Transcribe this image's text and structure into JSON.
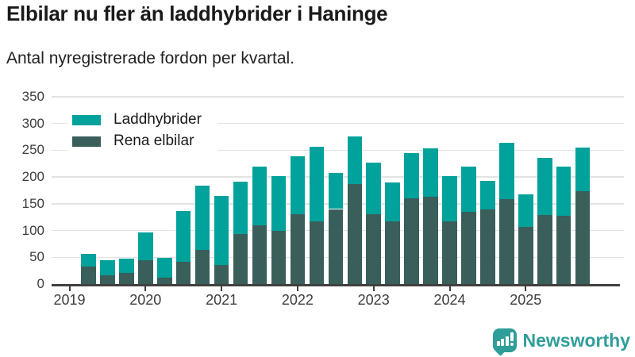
{
  "title": "Elbilar nu fler än laddhybrider i Haninge",
  "subtitle": "Antal nyregistrerade fordon per kvartal.",
  "legend": [
    {
      "label": "Laddhybrider",
      "color": "#00a29b"
    },
    {
      "label": "Rena elbilar",
      "color": "#3a5e59"
    }
  ],
  "branding": {
    "name": "Newsworthy",
    "color": "#2f9e99",
    "icon": "bar-chart-speech-bubble-icon"
  },
  "chart_data": {
    "type": "bar",
    "stacked": true,
    "title": "Elbilar nu fler än laddhybrider i Haninge",
    "subtitle": "Antal nyregistrerade fordon per kvartal.",
    "xlabel": "",
    "ylabel": "Antal nyregistrerade fordon",
    "ylim": [
      0,
      350
    ],
    "yticks": [
      0,
      50,
      100,
      150,
      200,
      250,
      300,
      350
    ],
    "xticks": [
      "2019",
      "2020",
      "2021",
      "2022",
      "2023",
      "2024",
      "2025"
    ],
    "grid": true,
    "legend_position": "top-left",
    "x": [
      "2019 Q2",
      "2019 Q3",
      "2019 Q4",
      "2020 Q1",
      "2020 Q2",
      "2020 Q3",
      "2020 Q4",
      "2021 Q1",
      "2021 Q2",
      "2021 Q3",
      "2021 Q4",
      "2022 Q1",
      "2022 Q2",
      "2022 Q3",
      "2022 Q4",
      "2023 Q1",
      "2023 Q2",
      "2023 Q3",
      "2023 Q4",
      "2024 Q1",
      "2024 Q2",
      "2024 Q3",
      "2024 Q4",
      "2025 Q1",
      "2025 Q2",
      "2025 Q3",
      "2025 Q4"
    ],
    "series": [
      {
        "name": "Rena elbilar",
        "color": "#3a5e59",
        "values": [
          33,
          16,
          21,
          45,
          12,
          41,
          63,
          35,
          93,
          109,
          99,
          131,
          117,
          140,
          187,
          130,
          117,
          160,
          163,
          117,
          135,
          139,
          158,
          107,
          129,
          128,
          174
        ]
      },
      {
        "name": "Laddhybrider",
        "color": "#00a29b",
        "values": [
          23,
          29,
          26,
          52,
          37,
          95,
          120,
          129,
          98,
          111,
          102,
          107,
          140,
          68,
          89,
          96,
          72,
          85,
          90,
          85,
          85,
          53,
          106,
          60,
          106,
          92,
          81
        ]
      }
    ]
  }
}
